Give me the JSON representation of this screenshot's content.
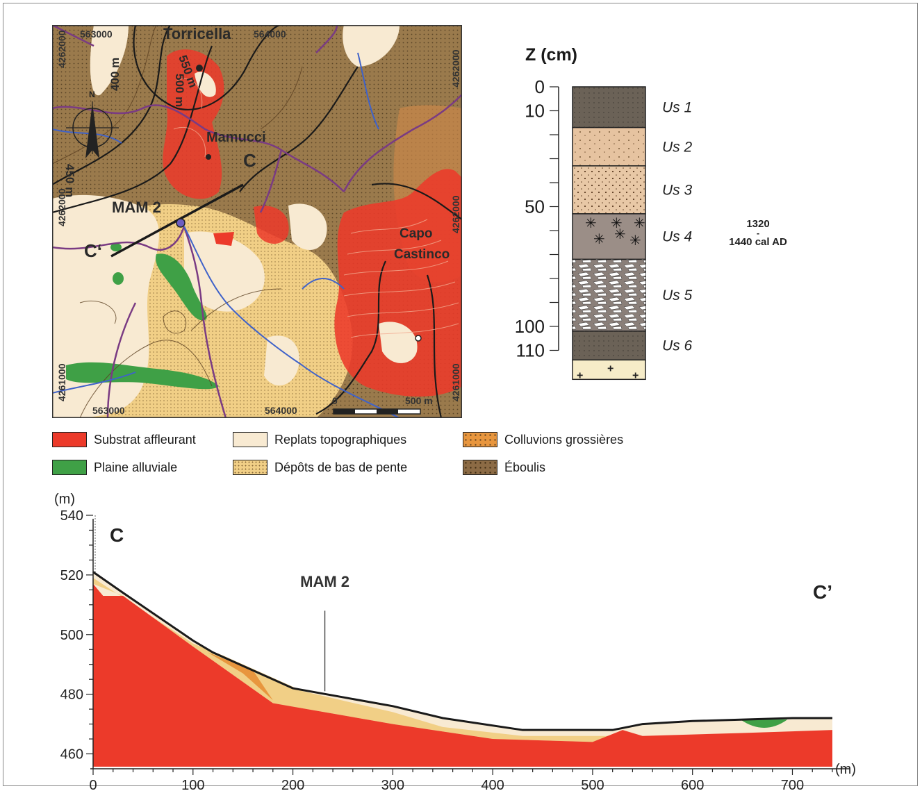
{
  "map": {
    "places": [
      "Torricella",
      "Mamucci",
      "Capo Castinco"
    ],
    "site": "MAM 2",
    "section_start": "C",
    "section_end": "C‘",
    "contours": [
      "400 m",
      "450 m",
      "500 m",
      "550 m"
    ],
    "eastings": [
      "563000",
      "564000",
      "563000",
      "564000"
    ],
    "northings": [
      "4262000",
      "4262000",
      "4261000",
      "4261000",
      "4262000",
      "4262000"
    ],
    "scale": {
      "start": "0",
      "end": "500 m"
    }
  },
  "legend": [
    {
      "label": "Substrat affleurant",
      "color": "#ec3a2a"
    },
    {
      "label": "Plaine alluviale",
      "color": "#3fa046"
    },
    {
      "label": "Replats topographiques",
      "color": "#f8ead2"
    },
    {
      "label": "Dépôts de bas de pente",
      "color": "#f1cf86"
    },
    {
      "label": "Colluvions grossières",
      "color": "#e8963e"
    },
    {
      "label": "Éboulis",
      "color": "#8c6b45"
    }
  ],
  "column": {
    "axis_title": "Z (cm)",
    "depth_ticks": [
      "0",
      "10",
      "50",
      "100",
      "110"
    ],
    "units": [
      {
        "label": "Us 1",
        "top": 0,
        "bottom": 17,
        "color": "#6b6257"
      },
      {
        "label": "Us 2",
        "top": 17,
        "bottom": 33,
        "color": "#e6c3a0"
      },
      {
        "label": "Us 3",
        "top": 33,
        "bottom": 53,
        "color": "#e8c8a6"
      },
      {
        "label": "Us 4",
        "top": 53,
        "bottom": 72,
        "color": "#9b8e87"
      },
      {
        "label": "Us 5",
        "top": 72,
        "bottom": 102,
        "color": "#8a7f79"
      },
      {
        "label": "Us 6",
        "top": 102,
        "bottom": 114,
        "color": "#6b6257"
      }
    ],
    "dating_top": "1320",
    "dating_dash": "-",
    "dating_bottom": "1440 cal AD"
  },
  "chart_data": {
    "type": "area",
    "ylabel": "(m)",
    "xlabel": "(m)",
    "xlim": [
      0,
      740
    ],
    "ylim": [
      455,
      540
    ],
    "x_ticks": [
      "0",
      "100",
      "200",
      "300",
      "400",
      "500",
      "600",
      "700"
    ],
    "y_ticks": [
      "540",
      "520",
      "500",
      "480",
      "460"
    ],
    "annotations": {
      "start": "C",
      "end": "C’",
      "site": "MAM 2",
      "site_x": 232
    },
    "surface": {
      "x": [
        0,
        30,
        100,
        120,
        200,
        250,
        300,
        350,
        430,
        520,
        550,
        600,
        700,
        740
      ],
      "y": [
        521,
        514,
        498,
        494,
        482,
        479,
        476,
        472,
        468,
        468,
        470,
        471,
        472,
        472
      ]
    },
    "substrate": {
      "x": [
        0,
        10,
        30,
        100,
        180,
        300,
        400,
        500,
        530,
        550,
        650,
        740
      ],
      "y": [
        517,
        513,
        513,
        496,
        477,
        470,
        465,
        464,
        468,
        466,
        467,
        468
      ]
    }
  }
}
